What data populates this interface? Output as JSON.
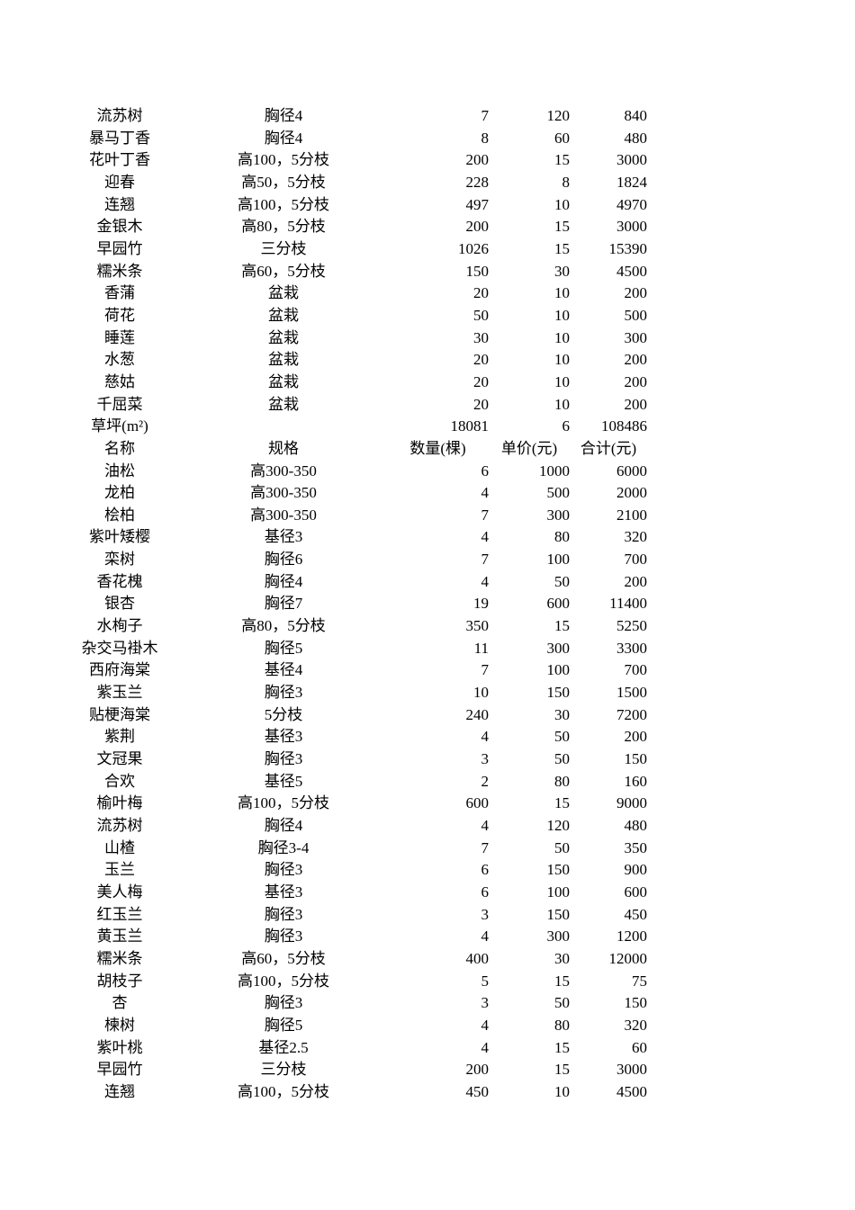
{
  "page": {
    "background_color": "#ffffff",
    "text_color": "#000000"
  },
  "table": {
    "rows": [
      {
        "type": "data",
        "name": "流苏树",
        "spec": "胸径4",
        "qty": "7",
        "price": "120",
        "total": "840"
      },
      {
        "type": "data",
        "name": "暴马丁香",
        "spec": "胸径4",
        "qty": "8",
        "price": "60",
        "total": "480"
      },
      {
        "type": "data",
        "name": "花叶丁香",
        "spec": "高100，5分枝",
        "qty": "200",
        "price": "15",
        "total": "3000"
      },
      {
        "type": "data",
        "name": "迎春",
        "spec": "高50，5分枝",
        "qty": "228",
        "price": "8",
        "total": "1824"
      },
      {
        "type": "data",
        "name": "连翘",
        "spec": "高100，5分枝",
        "qty": "497",
        "price": "10",
        "total": "4970"
      },
      {
        "type": "data",
        "name": "金银木",
        "spec": "高80，5分枝",
        "qty": "200",
        "price": "15",
        "total": "3000"
      },
      {
        "type": "data",
        "name": "早园竹",
        "spec": "三分枝",
        "qty": "1026",
        "price": "15",
        "total": "15390"
      },
      {
        "type": "data",
        "name": "糯米条",
        "spec": "高60，5分枝",
        "qty": "150",
        "price": "30",
        "total": "4500"
      },
      {
        "type": "data",
        "name": "香蒲",
        "spec": "盆栽",
        "qty": "20",
        "price": "10",
        "total": "200"
      },
      {
        "type": "data",
        "name": "荷花",
        "spec": "盆栽",
        "qty": "50",
        "price": "10",
        "total": "500"
      },
      {
        "type": "data",
        "name": "睡莲",
        "spec": "盆栽",
        "qty": "30",
        "price": "10",
        "total": "300"
      },
      {
        "type": "data",
        "name": "水葱",
        "spec": "盆栽",
        "qty": "20",
        "price": "10",
        "total": "200"
      },
      {
        "type": "data",
        "name": "慈姑",
        "spec": "盆栽",
        "qty": "20",
        "price": "10",
        "total": "200"
      },
      {
        "type": "data",
        "name": "千屈菜",
        "spec": "盆栽",
        "qty": "20",
        "price": "10",
        "total": "200"
      },
      {
        "type": "data",
        "name": "草坪(m²)",
        "spec": "",
        "qty": "18081",
        "price": "6",
        "total": "108486"
      },
      {
        "type": "header",
        "name": "名称",
        "spec": "规格",
        "qty": "数量(棵)",
        "price": "单价(元)",
        "total": "合计(元)"
      },
      {
        "type": "data",
        "name": "油松",
        "spec": "高300-350",
        "qty": "6",
        "price": "1000",
        "total": "6000"
      },
      {
        "type": "data",
        "name": "龙柏",
        "spec": "高300-350",
        "qty": "4",
        "price": "500",
        "total": "2000"
      },
      {
        "type": "data",
        "name": "桧柏",
        "spec": "高300-350",
        "qty": "7",
        "price": "300",
        "total": "2100"
      },
      {
        "type": "data",
        "name": "紫叶矮樱",
        "spec": "基径3",
        "qty": "4",
        "price": "80",
        "total": "320"
      },
      {
        "type": "data",
        "name": "栾树",
        "spec": "胸径6",
        "qty": "7",
        "price": "100",
        "total": "700"
      },
      {
        "type": "data",
        "name": "香花槐",
        "spec": "胸径4",
        "qty": "4",
        "price": "50",
        "total": "200"
      },
      {
        "type": "data",
        "name": "银杏",
        "spec": "胸径7",
        "qty": "19",
        "price": "600",
        "total": "11400"
      },
      {
        "type": "data",
        "name": "水栒子",
        "spec": "高80，5分枝",
        "qty": "350",
        "price": "15",
        "total": "5250"
      },
      {
        "type": "data",
        "name": "杂交马褂木",
        "spec": "胸径5",
        "qty": "11",
        "price": "300",
        "total": "3300"
      },
      {
        "type": "data",
        "name": "西府海棠",
        "spec": "基径4",
        "qty": "7",
        "price": "100",
        "total": "700"
      },
      {
        "type": "data",
        "name": "紫玉兰",
        "spec": "胸径3",
        "qty": "10",
        "price": "150",
        "total": "1500"
      },
      {
        "type": "data",
        "name": "贴梗海棠",
        "spec": "5分枝",
        "qty": "240",
        "price": "30",
        "total": "7200"
      },
      {
        "type": "data",
        "name": "紫荆",
        "spec": "基径3",
        "qty": "4",
        "price": "50",
        "total": "200"
      },
      {
        "type": "data",
        "name": "文冠果",
        "spec": "胸径3",
        "qty": "3",
        "price": "50",
        "total": "150"
      },
      {
        "type": "data",
        "name": "合欢",
        "spec": "基径5",
        "qty": "2",
        "price": "80",
        "total": "160"
      },
      {
        "type": "data",
        "name": "榆叶梅",
        "spec": "高100，5分枝",
        "qty": "600",
        "price": "15",
        "total": "9000"
      },
      {
        "type": "data",
        "name": "流苏树",
        "spec": "胸径4",
        "qty": "4",
        "price": "120",
        "total": "480"
      },
      {
        "type": "data",
        "name": "山楂",
        "spec": "胸径3-4",
        "qty": "7",
        "price": "50",
        "total": "350"
      },
      {
        "type": "data",
        "name": "玉兰",
        "spec": "胸径3",
        "qty": "6",
        "price": "150",
        "total": "900"
      },
      {
        "type": "data",
        "name": "美人梅",
        "spec": "基径3",
        "qty": "6",
        "price": "100",
        "total": "600"
      },
      {
        "type": "data",
        "name": "红玉兰",
        "spec": "胸径3",
        "qty": "3",
        "price": "150",
        "total": "450"
      },
      {
        "type": "data",
        "name": "黄玉兰",
        "spec": "胸径3",
        "qty": "4",
        "price": "300",
        "total": "1200"
      },
      {
        "type": "data",
        "name": "糯米条",
        "spec": "高60，5分枝",
        "qty": "400",
        "price": "30",
        "total": "12000"
      },
      {
        "type": "data",
        "name": "胡枝子",
        "spec": "高100，5分枝",
        "qty": "5",
        "price": "15",
        "total": "75"
      },
      {
        "type": "data",
        "name": "杏",
        "spec": "胸径3",
        "qty": "3",
        "price": "50",
        "total": "150"
      },
      {
        "type": "data",
        "name": "楝树",
        "spec": "胸径5",
        "qty": "4",
        "price": "80",
        "total": "320"
      },
      {
        "type": "data",
        "name": "紫叶桃",
        "spec": "基径2.5",
        "qty": "4",
        "price": "15",
        "total": "60"
      },
      {
        "type": "data",
        "name": "早园竹",
        "spec": "三分枝",
        "qty": "200",
        "price": "15",
        "total": "3000"
      },
      {
        "type": "data",
        "name": "连翘",
        "spec": "高100，5分枝",
        "qty": "450",
        "price": "10",
        "total": "4500"
      }
    ]
  }
}
